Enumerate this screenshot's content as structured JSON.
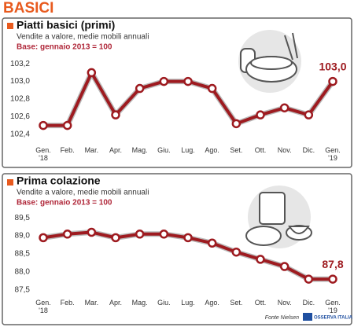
{
  "header": {
    "title": "BASICI"
  },
  "chart_data": [
    {
      "type": "line",
      "title": "Piatti basici (primi)",
      "subtitle": "Vendite a valore, medie mobili annuali",
      "note": "Base: gennaio 2013 = 100",
      "categories": [
        "Gen. '18",
        "Feb.",
        "Mar.",
        "Apr.",
        "Mag.",
        "Giu.",
        "Lug.",
        "Ago.",
        "Set.",
        "Ott.",
        "Nov.",
        "Dic.",
        "Gen. '19"
      ],
      "values": [
        102.5,
        102.5,
        103.1,
        102.62,
        102.92,
        103.0,
        103.0,
        102.92,
        102.52,
        102.62,
        102.7,
        102.62,
        103.0
      ],
      "value_labels": [
        null,
        null,
        null,
        null,
        null,
        null,
        null,
        null,
        null,
        null,
        null,
        null,
        "103,0"
      ],
      "color": "#9e1b20",
      "ylim": [
        102.3,
        103.3
      ],
      "yticks": [
        {
          "value": 102.4,
          "label": "102,4"
        },
        {
          "value": 102.6,
          "label": "102,6"
        },
        {
          "value": 102.8,
          "label": "102,8"
        },
        {
          "value": 103.0,
          "label": "103,0"
        },
        {
          "value": 103.2,
          "label": "103,2"
        }
      ],
      "grid": false
    },
    {
      "type": "line",
      "title": "Prima colazione",
      "subtitle": "Vendite a valore, medie mobili annuali",
      "note": "Base: gennaio 2013 = 100",
      "categories": [
        "Gen. '18",
        "Feb.",
        "Mar.",
        "Apr.",
        "Mag.",
        "Giu.",
        "Lug.",
        "Ago.",
        "Set.",
        "Ott.",
        "Nov.",
        "Dic.",
        "Gen. '19"
      ],
      "values": [
        88.95,
        89.05,
        89.1,
        88.95,
        89.05,
        89.05,
        88.95,
        88.8,
        88.55,
        88.35,
        88.15,
        87.8,
        87.8
      ],
      "value_labels": [
        null,
        null,
        null,
        null,
        null,
        null,
        null,
        null,
        null,
        null,
        null,
        null,
        "87,8"
      ],
      "color": "#9e1b20",
      "ylim": [
        87.3,
        89.7
      ],
      "yticks": [
        {
          "value": 87.5,
          "label": "87,5"
        },
        {
          "value": 88.0,
          "label": "88,0"
        },
        {
          "value": 88.5,
          "label": "88,5"
        },
        {
          "value": 89.0,
          "label": "89,0"
        },
        {
          "value": 89.5,
          "label": "89,5"
        }
      ],
      "grid": false
    }
  ],
  "footer": {
    "source": "Fonte Nielsen",
    "logo": "OSSERVA ITALIA"
  }
}
